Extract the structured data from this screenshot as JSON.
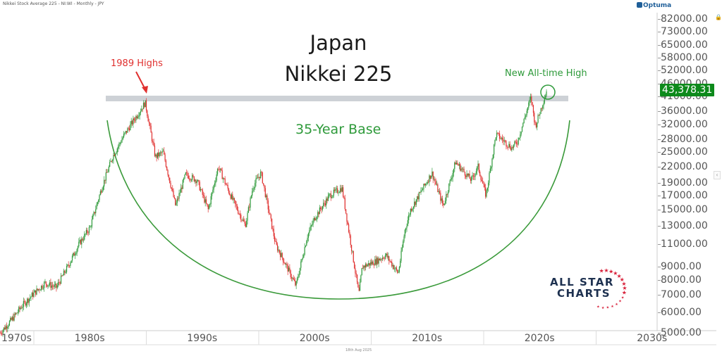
{
  "header": {
    "instrument_line": "Nikkei Stock Average 225 - NI:WI - Monthly - JPY",
    "brand": "Optuma"
  },
  "title": {
    "line1": "Japan",
    "line2": "Nikkei 225"
  },
  "annotations": {
    "highs_1989": "1989 Highs",
    "new_high": "New All-time High",
    "base": "35-Year Base"
  },
  "last_price": "43,378.31",
  "date_note": "18th Aug 2025",
  "logo": {
    "line1": "ALL STAR",
    "line2": "CHARTS"
  },
  "colors": {
    "up": "#2e9a3a",
    "down": "#e0302f",
    "arc": "#3a9a3a",
    "resistance": "#cdd1d6",
    "price_tag": "#0d8a1b"
  },
  "chart_data": {
    "type": "candlestick",
    "title": "Japan Nikkei 225",
    "subtitle": "Nikkei Stock Average 225 - NI:WI - Monthly - JPY",
    "y_scale": "log",
    "ylim": [
      5000,
      82000
    ],
    "y_ticks": [
      "82000.00",
      "73000.00",
      "65000.00",
      "58000.00",
      "52000.00",
      "46000.00",
      "41000.00",
      "36000.00",
      "32000.00",
      "28000.00",
      "25000.00",
      "22000.00",
      "19000.00",
      "17000.00",
      "15000.00",
      "13000.00",
      "11000.00",
      "9000.00",
      "8000.00",
      "7000.00",
      "6000.00",
      "5000.00"
    ],
    "x_ticks": [
      "1970s",
      "1980s",
      "1990s",
      "2000s",
      "2010s",
      "2020s",
      "2030s"
    ],
    "approx_series": {
      "years": [
        1977,
        1978,
        1979,
        1980,
        1981,
        1982,
        1983,
        1984,
        1985,
        1986,
        1987,
        1988,
        1989.9,
        1990.8,
        1991.5,
        1992.6,
        1993.5,
        1994.5,
        1995.5,
        1996.4,
        1997.5,
        1998.8,
        1999.5,
        2000.2,
        2001.5,
        2002.5,
        2003.3,
        2004.3,
        2005,
        2006.3,
        2007.4,
        2008.9,
        2009.2,
        2010.5,
        2011.3,
        2012.4,
        2013,
        2013.5,
        2015.4,
        2016.4,
        2017.5,
        2018.9,
        2019.5,
        2020.2,
        2021.1,
        2022.5,
        2023,
        2024.2,
        2024.6,
        2025.6
      ],
      "values": [
        5000,
        5600,
        6400,
        7100,
        7800,
        7500,
        9000,
        11000,
        12800,
        18000,
        24000,
        29000,
        38915,
        24000,
        25000,
        15500,
        20500,
        19500,
        15000,
        22000,
        17000,
        13000,
        18500,
        20800,
        11000,
        9000,
        7607,
        11800,
        14000,
        17000,
        18200,
        7054,
        9000,
        9500,
        10000,
        8500,
        12500,
        15000,
        20800,
        15500,
        22900,
        19500,
        22000,
        17000,
        29400,
        26000,
        27500,
        40800,
        31500,
        43378
      ]
    },
    "annotations": [
      "1989 Highs",
      "New All-time High",
      "35-Year Base"
    ],
    "resistance_level": 38915,
    "last_value": 43378.31
  }
}
